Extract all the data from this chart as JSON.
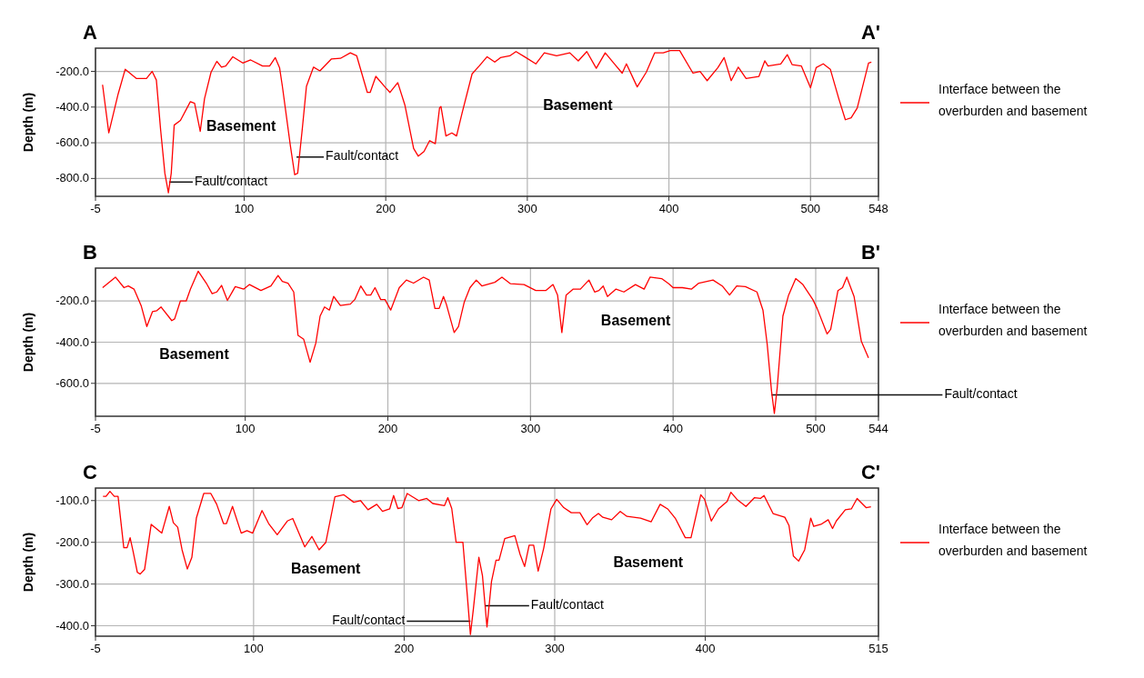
{
  "chart_data": [
    {
      "type": "line",
      "title": "A",
      "subtitle": "A'",
      "ylabel": "Depth (m)",
      "grid": true,
      "legend": "right",
      "xlim": [
        -5,
        548
      ],
      "xticks": [
        -5,
        100,
        200,
        300,
        400,
        500,
        548
      ],
      "ylim": [
        -900,
        -70
      ],
      "yticks": [
        {
          "value": -200,
          "label": "-200.0"
        },
        {
          "value": -400,
          "label": "-400.0"
        },
        {
          "value": -600,
          "label": "-600.0"
        },
        {
          "value": -800,
          "label": "-800.0"
        }
      ],
      "annotations": [
        "Basement",
        "Basement",
        {
          "text": "Fault/contact",
          "x": 47,
          "y": -820
        },
        {
          "text": "Fault/contact",
          "x": 137,
          "y": -680
        }
      ],
      "series": [
        {
          "name": "Interface between the overburden and basement",
          "color": "#ff0000",
          "x": [
            0,
            4.4,
            11,
            16,
            24,
            31,
            35,
            38,
            41,
            44,
            46.5,
            48.5,
            50.6,
            55,
            62,
            65,
            69,
            72,
            76.6,
            80.7,
            84,
            87,
            92,
            99,
            104.6,
            113,
            118,
            122,
            125,
            127,
            132.6,
            135.7,
            137.8,
            141,
            144,
            149,
            153.5,
            161.7,
            168,
            175,
            179.5,
            187,
            189,
            193,
            200,
            203,
            208.5,
            213.5,
            219.7,
            223,
            227,
            231,
            235,
            238,
            239,
            242.5,
            246.7,
            250,
            254,
            261,
            266,
            271.6,
            277,
            281,
            287.6,
            292,
            299,
            306,
            312,
            320.7,
            330,
            336,
            342,
            348.7,
            355,
            361,
            367,
            370,
            377.6,
            384,
            390,
            396,
            401,
            407.6,
            417,
            422,
            427,
            434.6,
            439,
            444,
            449,
            454.5,
            463.6,
            467.7,
            470,
            479,
            483.6,
            487,
            493.6,
            500,
            504,
            509,
            514,
            520,
            524.6,
            528.7,
            533,
            541,
            543
          ],
          "values": [
            -275,
            -544,
            -327,
            -188,
            -240,
            -240,
            -200,
            -249,
            -527,
            -771,
            -880,
            -771,
            -501,
            -475,
            -370,
            -379,
            -536,
            -353,
            -205,
            -144,
            -176,
            -170,
            -118,
            -153,
            -136,
            -170,
            -170,
            -123,
            -179,
            -284,
            -614,
            -779,
            -771,
            -527,
            -284,
            -176,
            -197,
            -130,
            -127,
            -96,
            -113,
            -318,
            -318,
            -228,
            -292,
            -318,
            -263,
            -388,
            -632,
            -675,
            -649,
            -588,
            -605,
            -405,
            -397,
            -562,
            -545,
            -562,
            -431,
            -214,
            -170,
            -118,
            -148,
            -123,
            -113,
            -89,
            -123,
            -158,
            -96,
            -113,
            -96,
            -141,
            -89,
            -183,
            -96,
            -153,
            -210,
            -158,
            -287,
            -205,
            -96,
            -96,
            -83,
            -83,
            -210,
            -200,
            -252,
            -179,
            -123,
            -252,
            -176,
            -240,
            -228,
            -141,
            -170,
            -158,
            -106,
            -162,
            -170,
            -292,
            -179,
            -158,
            -188,
            -353,
            -471,
            -460,
            -405,
            -153,
            -148
          ]
        }
      ]
    },
    {
      "type": "line",
      "title": "B",
      "subtitle": "B'",
      "ylabel": "Depth (m)",
      "grid": true,
      "legend": "right",
      "xlim": [
        -5,
        544
      ],
      "xticks": [
        -5,
        100,
        200,
        300,
        400,
        500,
        544
      ],
      "ylim": [
        -760,
        -40
      ],
      "yticks": [
        {
          "value": -200,
          "label": "-200.0"
        },
        {
          "value": -400,
          "label": "-400.0"
        },
        {
          "value": -600,
          "label": "-600.0"
        }
      ],
      "annotations": [
        "Basement",
        "Basement",
        {
          "text": "Fault/contact",
          "x": 469,
          "y": -656
        }
      ],
      "series": [
        {
          "name": "Interface between the overburden and basement",
          "color": "#ff0000",
          "x": [
            0,
            9,
            15,
            18,
            22,
            27,
            31,
            35,
            38,
            41,
            48.5,
            50.5,
            54.5,
            58.6,
            61.6,
            67,
            72.7,
            76.8,
            80,
            83.4,
            87.5,
            93,
            99,
            103,
            111,
            118,
            123,
            126,
            130,
            134,
            137,
            141,
            145.5,
            149.5,
            152.5,
            155.6,
            159,
            162,
            166.7,
            173.7,
            176.8,
            181,
            185,
            188,
            191,
            195,
            198,
            202,
            208,
            213,
            218,
            225,
            229,
            233,
            236,
            239,
            241,
            246.5,
            249.5,
            253.5,
            257.6,
            262,
            266,
            275,
            280,
            286,
            295.5,
            303.7,
            310.7,
            315.8,
            319,
            322,
            325,
            330,
            335,
            341,
            345,
            348,
            351,
            354,
            360,
            365.5,
            373.6,
            379.7,
            383.8,
            392,
            397,
            400,
            406.5,
            413,
            418,
            428,
            434.5,
            439.6,
            444.6,
            450.7,
            458.8,
            463,
            466,
            469,
            471,
            473,
            477,
            481,
            486,
            491,
            498,
            501,
            508,
            510.5,
            515.6,
            518.8,
            521.8,
            526.9,
            532,
            537
          ],
          "values": [
            -135,
            -84,
            -135,
            -127,
            -142,
            -222,
            -324,
            -251,
            -247,
            -229,
            -295,
            -287,
            -200,
            -200,
            -142,
            -55,
            -113,
            -164,
            -156,
            -124,
            -197,
            -130,
            -142,
            -120,
            -149,
            -127,
            -76,
            -105,
            -113,
            -156,
            -367,
            -386,
            -498,
            -404,
            -273,
            -229,
            -244,
            -178,
            -222,
            -215,
            -193,
            -127,
            -171,
            -171,
            -135,
            -193,
            -193,
            -244,
            -135,
            -98,
            -113,
            -84,
            -98,
            -236,
            -236,
            -178,
            -215,
            -353,
            -324,
            -207,
            -135,
            -98,
            -127,
            -109,
            -84,
            -116,
            -120,
            -149,
            -149,
            -120,
            -171,
            -353,
            -171,
            -142,
            -142,
            -98,
            -156,
            -149,
            -127,
            -178,
            -142,
            -156,
            -120,
            -142,
            -84,
            -91,
            -116,
            -135,
            -135,
            -142,
            -113,
            -98,
            -127,
            -171,
            -127,
            -130,
            -156,
            -244,
            -411,
            -637,
            -746,
            -622,
            -273,
            -171,
            -91,
            -120,
            -193,
            -236,
            -360,
            -338,
            -149,
            -135,
            -84,
            -178,
            -396,
            -476
          ]
        }
      ]
    },
    {
      "type": "line",
      "title": "C",
      "subtitle": "C'",
      "ylabel": "Depth (m)",
      "grid": true,
      "legend": "right",
      "xlim": [
        -5,
        515
      ],
      "xticks": [
        -5,
        100,
        200,
        300,
        400,
        515
      ],
      "ylim": [
        -425,
        -70
      ],
      "yticks": [
        {
          "value": -100,
          "label": "-100.0"
        },
        {
          "value": -200,
          "label": "-200.0"
        },
        {
          "value": -300,
          "label": "-300.0"
        },
        {
          "value": -400,
          "label": "-400.0"
        }
      ],
      "annotations": [
        "Basement",
        "Basement",
        {
          "text": "Fault/contact",
          "x": 244,
          "y": -389
        },
        {
          "text": "Fault/contact",
          "x": 254,
          "y": -352
        }
      ],
      "series": [
        {
          "name": "Interface between the overburden and basement",
          "color": "#ff0000",
          "x": [
            0,
            2,
            4.6,
            7.5,
            10,
            13.8,
            16,
            18,
            20,
            22.8,
            24.7,
            27.6,
            32,
            39,
            44,
            46.7,
            49.6,
            52.5,
            56,
            59,
            62,
            66.9,
            71.6,
            75.5,
            80,
            82,
            86,
            91.8,
            95.6,
            99.4,
            105.6,
            110,
            115.7,
            122.4,
            126,
            134,
            138.7,
            143.5,
            148,
            154,
            159.8,
            166.5,
            171,
            176,
            181.8,
            185.6,
            190.4,
            193,
            195.8,
            198.5,
            202,
            209.6,
            215,
            219,
            226.8,
            229,
            231.6,
            234.5,
            239,
            242,
            244,
            246,
            249.6,
            252,
            255,
            258,
            261,
            263,
            266.8,
            273.5,
            277,
            280,
            283,
            286,
            289,
            292.7,
            297.5,
            301.3,
            306,
            311,
            316.7,
            321.5,
            325,
            329,
            332,
            337.8,
            343.5,
            348,
            357,
            364,
            370,
            375,
            380,
            386.7,
            390.5,
            397,
            399.5,
            404,
            408.7,
            414.5,
            417,
            421,
            427,
            432.7,
            436.6,
            439,
            445,
            452.8,
            455.6,
            458.5,
            462,
            466,
            470,
            472,
            476.8,
            481.6,
            484.5,
            487,
            493,
            497,
            500.8,
            506.8,
            510
          ],
          "values": [
            -90,
            -90,
            -78,
            -90,
            -90,
            -213,
            -213,
            -189,
            -222,
            -272,
            -276,
            -265,
            -157,
            -178,
            -114,
            -153,
            -164,
            -218,
            -264,
            -236,
            -142,
            -83,
            -83,
            -109,
            -155,
            -155,
            -114,
            -178,
            -172,
            -178,
            -124,
            -155,
            -182,
            -149,
            -143,
            -211,
            -186,
            -218,
            -200,
            -91,
            -86,
            -104,
            -100,
            -122,
            -109,
            -126,
            -120,
            -88,
            -119,
            -117,
            -83,
            -100,
            -95,
            -107,
            -112,
            -93,
            -119,
            -200,
            -200,
            -330,
            -421,
            -359,
            -236,
            -280,
            -403,
            -294,
            -243,
            -243,
            -191,
            -184,
            -229,
            -258,
            -207,
            -207,
            -269,
            -214,
            -120,
            -97,
            -117,
            -129,
            -129,
            -158,
            -142,
            -131,
            -140,
            -146,
            -126,
            -138,
            -142,
            -151,
            -109,
            -120,
            -142,
            -189,
            -189,
            -86,
            -97,
            -149,
            -120,
            -102,
            -80,
            -97,
            -114,
            -93,
            -95,
            -88,
            -131,
            -140,
            -160,
            -233,
            -245,
            -218,
            -142,
            -162,
            -157,
            -146,
            -167,
            -149,
            -122,
            -120,
            -95,
            -117,
            -115
          ]
        }
      ]
    }
  ]
}
